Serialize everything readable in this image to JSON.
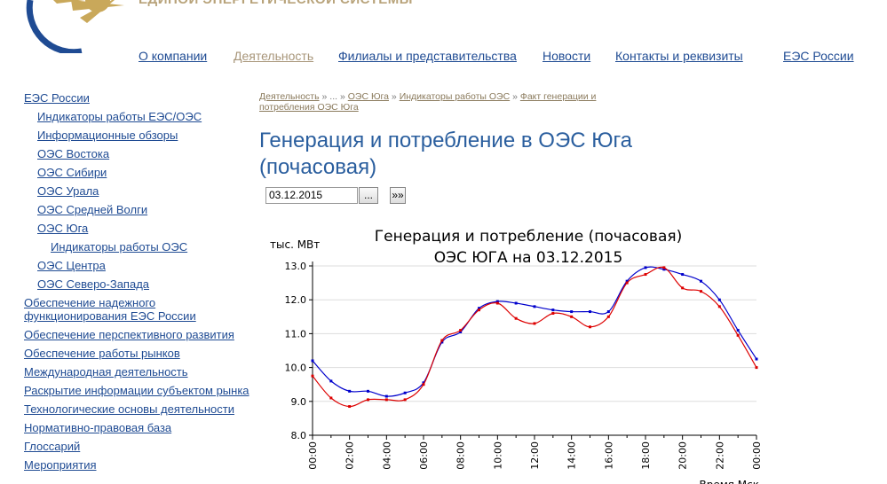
{
  "header": {
    "org": "ЕДИНОЙ ЭНЕРГЕТИЧЕСКОЙ СИСТЕМЫ",
    "nav": [
      "О компании",
      "Деятельность",
      "Филиалы и представительства",
      "Новости",
      "Контакты и реквизиты",
      "ЕЭС России"
    ]
  },
  "sidebar": [
    "ЕЭС России",
    "Индикаторы работы ЕЭС/ОЭС",
    "Информационные обзоры",
    "ОЭС Востока",
    "ОЭС Сибири",
    "ОЭС Урала",
    "ОЭС Средней Волги",
    "ОЭС Юга",
    "Индикаторы работы ОЭС",
    "ОЭС Центра",
    "ОЭС Северо-Запада",
    "Обеспечение надежного функционирования ЕЭС России",
    "Обеспечение перспективного развития",
    "Обеспечение работы рынков",
    "Международная деятельность",
    "Раскрытие информации субъектом рынка",
    "Технологические основы деятельности",
    "Нормативно-правовая база",
    "Глоссарий",
    "Мероприятия"
  ],
  "breadcrumb": [
    "Деятельность",
    "...",
    "ОЭС Юга",
    "Индикаторы работы ОЭС",
    "Факт генерации и потребления ОЭС Юга"
  ],
  "breadcrumb_separator": "»",
  "page_title": "Генерация и потребление в ОЭС Юга (почасовая)",
  "date_value": "03.12.2015",
  "buttons": [
    "...",
    "»»"
  ],
  "chart_data": {
    "type": "line",
    "title": [
      "Генерация и потребление (почасовая)",
      "ОЭС ЮГА на 03.12.2015"
    ],
    "y_label": "тыс. МВт",
    "x_label": "Время Мск",
    "categories": [
      "00:00",
      null,
      "02:00",
      null,
      "04:00",
      null,
      "06:00",
      null,
      "08:00",
      null,
      "10:00",
      null,
      "12:00",
      null,
      "14:00",
      null,
      "16:00",
      null,
      "18:00",
      null,
      "20:00",
      null,
      "22:00",
      null,
      "00:00"
    ],
    "series": [
      {
        "color": "#0000cc",
        "values": [
          10.2,
          9.6,
          9.3,
          9.3,
          9.15,
          9.25,
          9.55,
          10.75,
          11.05,
          11.75,
          11.95,
          11.9,
          11.8,
          11.7,
          11.65,
          11.65,
          11.65,
          12.55,
          12.95,
          12.9,
          12.75,
          12.55,
          12.0,
          11.1,
          10.25
        ]
      },
      {
        "color": "#dd0000",
        "values": [
          9.75,
          9.1,
          8.85,
          9.05,
          9.05,
          9.05,
          9.5,
          10.8,
          11.1,
          11.7,
          11.9,
          11.45,
          11.3,
          11.6,
          11.5,
          11.2,
          11.5,
          12.5,
          12.75,
          12.95,
          12.35,
          12.25,
          11.8,
          10.95,
          10.0
        ]
      }
    ],
    "ylim": [
      8,
      13
    ],
    "yticks": [
      {
        "value": 8,
        "label": "8.0"
      },
      {
        "value": 9,
        "label": "9.0"
      },
      {
        "value": 10,
        "label": "10.0"
      },
      {
        "value": 11,
        "label": "11.0"
      },
      {
        "value": 12,
        "label": "12.0"
      },
      {
        "value": 13,
        "label": "13.0"
      }
    ],
    "grid": true
  }
}
